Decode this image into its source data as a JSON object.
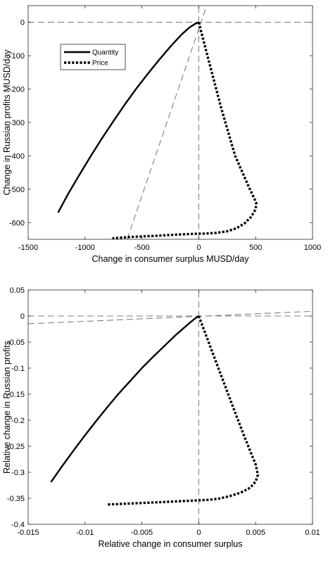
{
  "chart_data": [
    {
      "type": "line",
      "xlabel": "Change in consumer surplus MUSD/day",
      "ylabel": "Change in Russian profits MUSD/day",
      "xlim": [
        -1500,
        1000
      ],
      "ylim": [
        -650,
        50
      ],
      "xticks": [
        -1500,
        -1000,
        -500,
        0,
        500,
        1000
      ],
      "yticks": [
        -600,
        -500,
        -400,
        -300,
        -200,
        -100,
        0
      ],
      "xtick_labels": [
        "-1500",
        "-1000",
        "-500",
        "0",
        "500",
        "1000"
      ],
      "ytick_labels": [
        "-600",
        "-500",
        "-400",
        "-300",
        "-200",
        "-100",
        "0"
      ],
      "grid": false,
      "legend_position": "top-left",
      "series": [
        {
          "name": "Quantity",
          "style": "solid",
          "color": "#000000",
          "x": [
            -1237,
            -1150,
            -1050,
            -950,
            -850,
            -750,
            -650,
            -550,
            -450,
            -350,
            -250,
            -150,
            -80,
            -30,
            0
          ],
          "y": [
            -570,
            -515,
            -457,
            -401,
            -347,
            -296,
            -246,
            -199,
            -155,
            -113,
            -73,
            -36,
            -15,
            -4,
            0
          ]
        },
        {
          "name": "Price",
          "style": "dotted",
          "color": "#000000",
          "x": [
            0,
            80,
            200,
            320,
            440,
            505,
            500,
            460,
            400,
            330,
            250,
            150,
            50,
            0,
            -200,
            -400,
            -600,
            -760
          ],
          "y": [
            0,
            -105,
            -260,
            -400,
            -493,
            -540,
            -560,
            -583,
            -603,
            -617,
            -626,
            -631,
            -633,
            -633,
            -636,
            -640,
            -643,
            -647
          ]
        }
      ],
      "reference_lines": [
        {
          "style": "dashed",
          "color": "#808080",
          "x": [
            -1500,
            1000
          ],
          "y": [
            0,
            0
          ]
        },
        {
          "style": "dashed",
          "color": "#808080",
          "x": [
            0,
            0
          ],
          "y": [
            -650,
            50
          ]
        },
        {
          "style": "dashed",
          "color": "#808080",
          "x": [
            -630,
            70
          ],
          "y": [
            -650,
            50
          ]
        }
      ]
    },
    {
      "type": "line",
      "xlabel": "Relative change in consumer surplus",
      "ylabel": "Relative change in Russian profits",
      "xlim": [
        -0.015,
        0.01
      ],
      "ylim": [
        -0.4,
        0.05
      ],
      "xticks": [
        -0.015,
        -0.01,
        -0.005,
        0,
        0.005,
        0.01
      ],
      "yticks": [
        -0.4,
        -0.35,
        -0.3,
        -0.25,
        -0.2,
        -0.15,
        -0.1,
        -0.05,
        0,
        0.05
      ],
      "xtick_labels": [
        "-0.015",
        "-0.01",
        "-0.005",
        "0",
        "0.005",
        "0.01"
      ],
      "ytick_labels": [
        "-0.4",
        "-0.35",
        "-0.3",
        "-0.25",
        "-0.2",
        "-0.15",
        "-0.1",
        "-0.05",
        "0",
        "0.05"
      ],
      "grid": false,
      "series": [
        {
          "name": "Quantity",
          "style": "solid",
          "color": "#000000",
          "x": [
            -0.013,
            -0.012,
            -0.011,
            -0.01,
            -0.009,
            -0.008,
            -0.007,
            -0.006,
            -0.005,
            -0.004,
            -0.003,
            -0.002,
            -0.001,
            -0.0004,
            0
          ],
          "y": [
            -0.319,
            -0.288,
            -0.258,
            -0.229,
            -0.201,
            -0.174,
            -0.148,
            -0.124,
            -0.1,
            -0.078,
            -0.057,
            -0.036,
            -0.017,
            -0.006,
            0
          ]
        },
        {
          "name": "Price",
          "style": "dotted",
          "color": "#000000",
          "x": [
            0,
            0.001,
            0.002,
            0.003,
            0.004,
            0.005,
            0.0052,
            0.005,
            0.0045,
            0.0037,
            0.0027,
            0.0017,
            0.0008,
            0,
            -0.002,
            -0.004,
            -0.006,
            -0.008
          ],
          "y": [
            0,
            -0.058,
            -0.116,
            -0.174,
            -0.231,
            -0.285,
            -0.305,
            -0.318,
            -0.33,
            -0.339,
            -0.346,
            -0.351,
            -0.353,
            -0.354,
            -0.356,
            -0.358,
            -0.36,
            -0.362
          ]
        }
      ],
      "reference_lines": [
        {
          "style": "dashed",
          "color": "#808080",
          "x": [
            -0.015,
            0.01
          ],
          "y": [
            0,
            0
          ]
        },
        {
          "style": "dashed",
          "color": "#808080",
          "x": [
            0,
            0
          ],
          "y": [
            -0.4,
            0.05
          ]
        },
        {
          "style": "dashed",
          "color": "#808080",
          "x": [
            -0.015,
            0.01
          ],
          "y": [
            -0.015,
            0.009
          ]
        }
      ]
    }
  ]
}
